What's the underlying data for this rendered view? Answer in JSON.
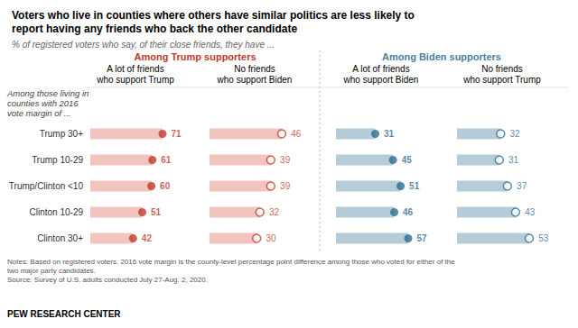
{
  "chart_data": [
    {
      "type": "bar",
      "orientation": "horizontal",
      "title": "Voters who live in counties where others have similar politics are less likely to\nreport having any friends who back the other candidate",
      "subtitle": "% of registered voters who say, of their close friends, they have ...",
      "annotations": [
        {
          "text": "Among Trump supporters",
          "color": "#c0392b"
        },
        {
          "text": "Among Biden supporters",
          "color": "#4a7fa0"
        },
        {
          "text": "Among those living in\ncounties with 2016\nvote margin of ..."
        },
        {
          "text": "Notes: Based on registered voters. 2016 vote margin is the county-level percentage point difference among those who voted for either of the\ntwo major party candidates.\nSource: Survey of U.S. adults conducted July 27-Aug. 2, 2020."
        },
        {
          "text": "PEW RESEARCH CENTER"
        }
      ],
      "xlabel": "A lot of friends\nwho support Trump",
      "categories": [
        "Trump 30+",
        "Trump 10-29",
        "Trump/Clinton <10",
        "Clinton 10-29",
        "Clinton 30+"
      ],
      "series": [
        {
          "type": "bar",
          "color": "#f2c4be",
          "values": [
            71,
            61,
            60,
            51,
            42
          ]
        },
        {
          "type": "scatter",
          "color": "#c0392b",
          "marker": "circle",
          "values": [
            71,
            61,
            60,
            51,
            42
          ]
        }
      ],
      "xlim": [
        0,
        71
      ],
      "tick_labels": "y",
      "grid": false,
      "data_labels": true
    },
    {
      "type": "bar",
      "orientation": "horizontal",
      "xlabel": "No friends\nwho support Biden",
      "categories": [
        "Trump 30+",
        "Trump 10-29",
        "Trump/Clinton <10",
        "Clinton 10-29",
        "Clinton 30+"
      ],
      "series": [
        {
          "type": "bar",
          "color": "#f2c4be",
          "values": [
            46,
            39,
            39,
            32,
            30
          ]
        },
        {
          "type": "scatter",
          "color": "#c0392b",
          "marker": "open_circle",
          "values": [
            46,
            39,
            39,
            32,
            30
          ]
        }
      ],
      "xlim": [
        0,
        46
      ],
      "tick_labels": false,
      "grid": false,
      "data_labels": true
    },
    {
      "type": "bar",
      "orientation": "horizontal",
      "xlabel": "A lot of friends\nwho support Biden",
      "categories": [
        "Trump 30+",
        "Trump 10-29",
        "Trump/Clinton <10",
        "Clinton 10-29",
        "Clinton 30+"
      ],
      "series": [
        {
          "type": "bar",
          "color": "#b5ccd8",
          "values": [
            31,
            45,
            51,
            46,
            57
          ]
        },
        {
          "type": "scatter",
          "color": "#2e6d8e",
          "marker": "circle",
          "values": [
            31,
            45,
            51,
            46,
            57
          ]
        }
      ],
      "xlim": [
        0,
        57
      ],
      "tick_labels": false,
      "grid": false,
      "data_labels": true
    },
    {
      "type": "bar",
      "orientation": "horizontal",
      "xlabel": "No friends\nwho support Trump",
      "categories": [
        "Trump 30+",
        "Trump 10-29",
        "Trump/Clinton <10",
        "Clinton 10-29",
        "Clinton 30+"
      ],
      "series": [
        {
          "type": "bar",
          "color": "#b5ccd8",
          "values": [
            32,
            31,
            37,
            43,
            53
          ]
        },
        {
          "type": "scatter",
          "color": "#2e6d8e",
          "marker": "open_circle",
          "values": [
            32,
            31,
            37,
            43,
            53
          ]
        }
      ],
      "xlim": [
        0,
        53
      ],
      "tick_labels": false,
      "grid": false,
      "data_labels": true
    }
  ]
}
